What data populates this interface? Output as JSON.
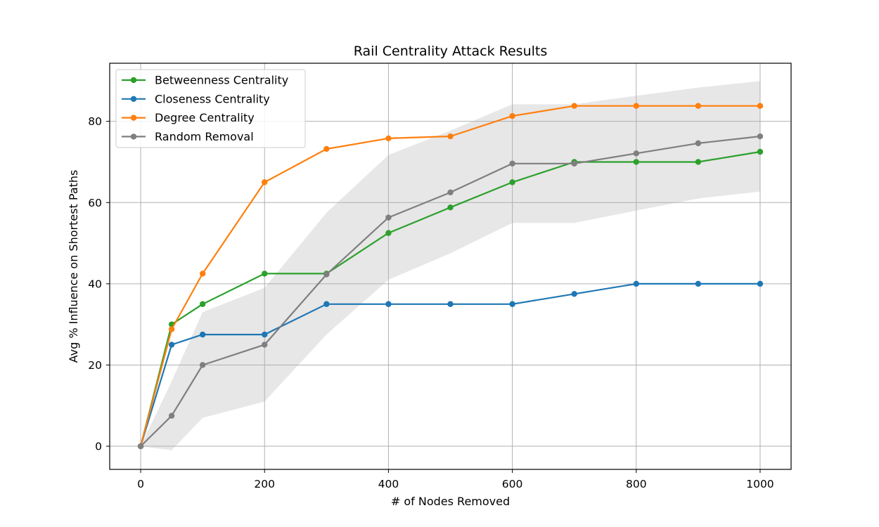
{
  "chart_data": {
    "type": "line",
    "title": "Rail Centrality Attack Results",
    "xlabel": "# of Nodes Removed",
    "ylabel": "Avg % Influence on Shortest Paths",
    "xlim": [
      -50,
      1050
    ],
    "ylim": [
      -5.7,
      94.3
    ],
    "xticks": [
      0,
      200,
      400,
      600,
      800,
      1000
    ],
    "yticks": [
      0,
      20,
      40,
      60,
      80
    ],
    "grid": true,
    "legend_position": "upper-left",
    "x": [
      0,
      50,
      100,
      200,
      300,
      400,
      500,
      600,
      700,
      800,
      900,
      1000
    ],
    "series": [
      {
        "name": "Betweenness Centrality",
        "color": "#2ca02c",
        "values": [
          0,
          30,
          35,
          42.5,
          42.5,
          52.5,
          58.8,
          65,
          70,
          70,
          70,
          72.5
        ]
      },
      {
        "name": "Closeness Centrality",
        "color": "#1f77b4",
        "values": [
          0,
          25,
          27.5,
          27.5,
          35,
          35,
          35,
          35,
          37.5,
          40,
          40,
          40
        ]
      },
      {
        "name": "Degree Centrality",
        "color": "#ff7f0e",
        "values": [
          0,
          28.8,
          42.5,
          65,
          73.2,
          75.8,
          76.3,
          81.3,
          83.8,
          83.8,
          83.8,
          83.8
        ]
      },
      {
        "name": "Random Removal",
        "color": "#7f7f7f",
        "values": [
          0,
          7.5,
          20,
          25,
          42.3,
          56.3,
          62.5,
          69.6,
          69.6,
          72.1,
          74.6,
          76.3
        ]
      }
    ],
    "band": {
      "color": "#d3d3d3",
      "lower": [
        0,
        -1,
        7,
        11,
        27.5,
        41,
        47.5,
        55,
        55,
        58,
        61,
        62.7
      ],
      "upper": [
        0,
        16,
        33,
        39,
        57.5,
        71.7,
        77.7,
        84.2,
        84.2,
        86.3,
        88.3,
        89.9
      ]
    }
  }
}
